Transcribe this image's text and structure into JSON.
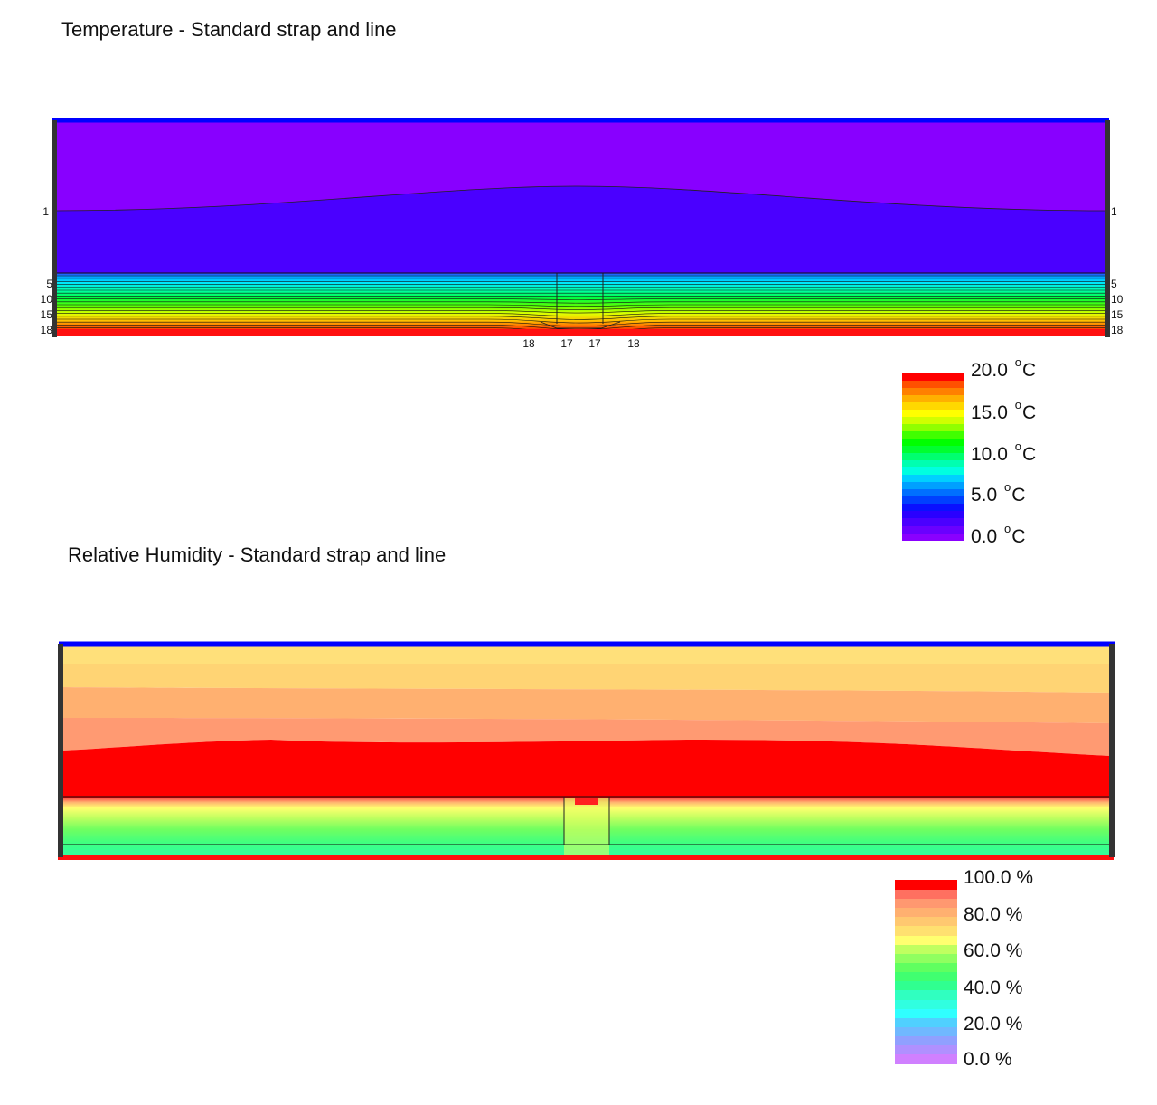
{
  "charts_meta": {
    "temperature_title": "Temperature - Standard strap and line",
    "humidity_title": "Relative Humidity - Standard strap and line"
  },
  "chart_data": [
    {
      "type": "heatmap",
      "title": "Temperature - Standard strap and line",
      "unit": "°C",
      "colorbar": {
        "min": 0.0,
        "max": 20.0,
        "ticks": [
          20.0,
          15.0,
          10.0,
          5.0,
          0.0
        ],
        "tick_labels": [
          "20.0",
          "15.0",
          "10.0",
          "5.0"
        ],
        "zero_label": "0.0",
        "unit_label": "C",
        "degree_mark": "o",
        "colors_bottom_to_top": [
          "#8a00ff",
          "#6a00ff",
          "#4a00ff",
          "#2a00ff",
          "#0a10ff",
          "#0040ff",
          "#0070ff",
          "#00a0ff",
          "#00d0ff",
          "#00ffe0",
          "#00ffb0",
          "#00ff70",
          "#00ff30",
          "#00ff00",
          "#40ff00",
          "#90ff00",
          "#d0ff00",
          "#ffff00",
          "#ffd800",
          "#ffb000",
          "#ff8000",
          "#ff5000",
          "#ff0000"
        ]
      },
      "left_contour_labels": [
        "1",
        "5",
        "10",
        "15",
        "18"
      ],
      "right_contour_labels": [
        "1",
        "5",
        "10",
        "15",
        "18"
      ],
      "bottom_contour_labels": [
        "18",
        "17",
        "17",
        "18"
      ],
      "colors": {
        "top_boundary": "#0000ff",
        "bottom_boundary": "#ff0000",
        "side_boundary": "#333333"
      }
    },
    {
      "type": "heatmap",
      "title": "Relative Humidity - Standard strap and line",
      "unit": "%",
      "colorbar": {
        "min": 0.0,
        "max": 100.0,
        "ticks": [
          100.0,
          80.0,
          60.0,
          40.0,
          20.0,
          0.0
        ],
        "tick_labels": [
          "100.0 %",
          "80.0 %",
          "60.0 %",
          "40.0 %",
          "20.0 %",
          "0.0 %"
        ],
        "colors_bottom_to_top": [
          "#d080ff",
          "#b090ff",
          "#90a0ff",
          "#70b8ff",
          "#50d0ff",
          "#30ffff",
          "#30ffe0",
          "#30ffc0",
          "#30ff90",
          "#40ff70",
          "#60ff60",
          "#90ff60",
          "#c0ff60",
          "#ffff70",
          "#ffe070",
          "#ffc870",
          "#ffb070",
          "#ff9870",
          "#ff7060",
          "#ff0000"
        ]
      },
      "colors": {
        "top_boundary": "#0000ff",
        "bottom_boundary": "#ff0000",
        "side_boundary": "#333333"
      }
    }
  ]
}
